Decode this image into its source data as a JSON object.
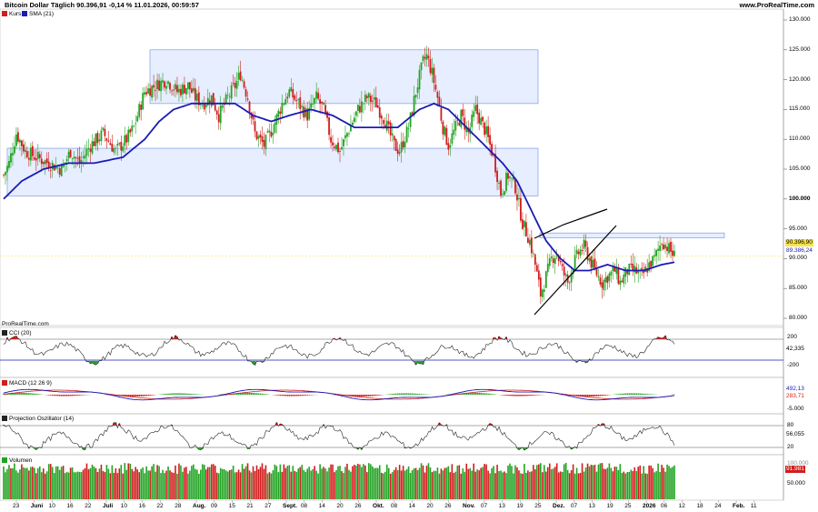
{
  "header": {
    "title": "Bitcoin Dollar Täglich 90.396,91 -0,14 % 11.01.2026, 00:59:57",
    "site": "www.ProRealTime.com",
    "footer_brand": "ProRealTime.com"
  },
  "colors": {
    "up": "#22a322",
    "down": "#d11d1d",
    "sma": "#1b1bb5",
    "zone_fill": "#dde8ff",
    "zone_stroke": "#7d9de6",
    "line": "#000000"
  },
  "legend": {
    "kurs": "Kurs",
    "sma": "SMA (21)",
    "cci": "CCI (20)",
    "macd": "MACD (12 26 9)",
    "proj": "Projection Oszillator (14)",
    "vol": "Volumen"
  },
  "price_axis": {
    "ticks": [
      "130.000",
      "125.000",
      "120.000",
      "115.000",
      "110.000",
      "105.000",
      "100.000",
      "95.000",
      "90.000",
      "85.000",
      "80.000"
    ],
    "last_price": "90.396,90",
    "sma_value": "89.386,24"
  },
  "cci_axis": {
    "ticks": [
      "200",
      "-200"
    ],
    "value": "42,335"
  },
  "macd_axis": {
    "ticks": [
      "-5.000"
    ],
    "value_top": "492,13",
    "value_bottom": "283,71"
  },
  "proj_axis": {
    "ticks": [
      "80",
      "20"
    ],
    "value": "56,055"
  },
  "vol_axis": {
    "ticks": [
      "50.000"
    ],
    "value_top": "100.000",
    "value": "91.981"
  },
  "x_axis": {
    "labels": [
      "23",
      "Juni",
      "10",
      "16",
      "22",
      "Juli",
      "10",
      "16",
      "22",
      "28",
      "Aug.",
      "09",
      "15",
      "21",
      "27",
      "Sept.",
      "08",
      "14",
      "20",
      "26",
      "Okt.",
      "08",
      "14",
      "20",
      "26",
      "Nov.",
      "07",
      "13",
      "19",
      "25",
      "Dez.",
      "07",
      "13",
      "19",
      "25",
      "2026",
      "06",
      "12",
      "18",
      "24",
      "Feb.",
      "11"
    ]
  },
  "chart_data": {
    "type": "candlestick",
    "title": "Bitcoin Dollar Täglich",
    "ylim": [
      78000,
      131000
    ],
    "zones": [
      {
        "from": "Juli 1",
        "to": "Okt. 28",
        "low": 116000,
        "high": 125000
      },
      {
        "from": "Mai 21",
        "to": "Nov. 4",
        "low": 100500,
        "high": 108500
      },
      {
        "from": "Dez. 8",
        "to": "Jan. 10",
        "low": 93500,
        "high": 94300
      }
    ],
    "trendlines": [
      {
        "points": [
          [
            85000,
            "Nov. 23"
          ],
          [
            91500,
            "Dez. 1"
          ],
          [
            96000,
            "Dez. 15"
          ]
        ]
      },
      {
        "points": [
          [
            81000,
            "Nov. 23"
          ],
          [
            93000,
            "Dez. 17"
          ]
        ]
      }
    ],
    "close_path": [
      [
        0,
        104
      ],
      [
        3,
        106
      ],
      [
        7,
        111
      ],
      [
        12,
        108
      ],
      [
        18,
        107
      ],
      [
        25,
        106
      ],
      [
        32,
        105
      ],
      [
        37,
        108
      ],
      [
        42,
        106
      ],
      [
        48,
        109
      ],
      [
        55,
        111
      ],
      [
        62,
        108
      ],
      [
        68,
        110
      ],
      [
        72,
        112
      ],
      [
        78,
        118
      ],
      [
        84,
        119
      ],
      [
        90,
        120
      ],
      [
        96,
        118
      ],
      [
        102,
        119
      ],
      [
        106,
        117
      ],
      [
        110,
        116
      ],
      [
        115,
        117
      ],
      [
        119,
        114
      ],
      [
        124,
        117
      ],
      [
        128,
        119
      ],
      [
        131,
        121
      ],
      [
        135,
        117
      ],
      [
        139,
        111
      ],
      [
        144,
        109
      ],
      [
        149,
        112
      ],
      [
        154,
        116
      ],
      [
        158,
        118
      ],
      [
        163,
        116
      ],
      [
        168,
        114
      ],
      [
        173,
        117
      ],
      [
        177,
        115
      ],
      [
        181,
        110
      ],
      [
        186,
        108
      ],
      [
        190,
        111
      ],
      [
        196,
        115
      ],
      [
        201,
        117
      ],
      [
        206,
        116
      ],
      [
        211,
        113
      ],
      [
        216,
        109
      ],
      [
        219,
        108
      ],
      [
        224,
        112
      ],
      [
        228,
        118
      ],
      [
        232,
        123
      ],
      [
        234,
        124
      ],
      [
        237,
        121
      ],
      [
        240,
        117
      ],
      [
        243,
        112
      ],
      [
        246,
        109
      ],
      [
        250,
        112
      ],
      [
        253,
        114
      ],
      [
        257,
        111
      ],
      [
        261,
        115
      ],
      [
        264,
        113
      ],
      [
        267,
        111
      ],
      [
        271,
        107
      ],
      [
        275,
        101
      ],
      [
        279,
        104
      ],
      [
        283,
        102
      ],
      [
        287,
        96
      ],
      [
        291,
        93
      ],
      [
        294,
        89
      ],
      [
        297,
        84
      ],
      [
        300,
        87
      ],
      [
        303,
        90
      ],
      [
        306,
        91
      ],
      [
        309,
        88
      ],
      [
        312,
        86
      ],
      [
        315,
        89
      ],
      [
        318,
        91
      ],
      [
        321,
        92
      ],
      [
        324,
        90
      ],
      [
        327,
        88
      ],
      [
        331,
        86
      ],
      [
        334,
        87
      ],
      [
        338,
        88
      ],
      [
        341,
        86
      ],
      [
        345,
        88
      ],
      [
        349,
        88
      ],
      [
        353,
        87
      ],
      [
        357,
        89
      ],
      [
        360,
        90
      ],
      [
        364,
        93
      ],
      [
        367,
        92
      ],
      [
        371,
        90.4
      ]
    ],
    "sma_path": [
      [
        0,
        100
      ],
      [
        10,
        103
      ],
      [
        22,
        105
      ],
      [
        36,
        106
      ],
      [
        50,
        106
      ],
      [
        66,
        107
      ],
      [
        78,
        110
      ],
      [
        86,
        113
      ],
      [
        94,
        115
      ],
      [
        104,
        116
      ],
      [
        116,
        116
      ],
      [
        128,
        116
      ],
      [
        138,
        114
      ],
      [
        148,
        113
      ],
      [
        158,
        114
      ],
      [
        170,
        115
      ],
      [
        182,
        114
      ],
      [
        194,
        112
      ],
      [
        206,
        112
      ],
      [
        218,
        112
      ],
      [
        230,
        115
      ],
      [
        238,
        116
      ],
      [
        246,
        115
      ],
      [
        256,
        112
      ],
      [
        266,
        109
      ],
      [
        276,
        106
      ],
      [
        284,
        103
      ],
      [
        292,
        98
      ],
      [
        300,
        93
      ],
      [
        308,
        90
      ],
      [
        316,
        88
      ],
      [
        324,
        88
      ],
      [
        334,
        89
      ],
      [
        344,
        88
      ],
      [
        354,
        88
      ],
      [
        364,
        89
      ],
      [
        371,
        89.4
      ]
    ],
    "dates_count": 372
  }
}
